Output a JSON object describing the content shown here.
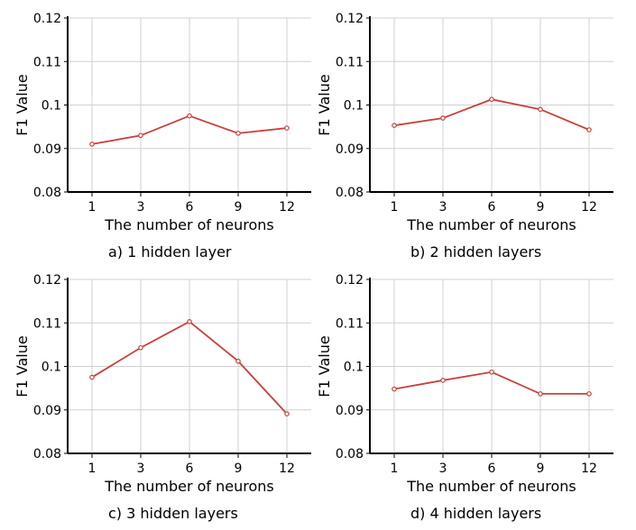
{
  "chart_data": [
    {
      "type": "line",
      "caption": "a) 1 hidden layer",
      "xlabel": "The number of neurons",
      "ylabel": "F1 Value",
      "categories": [
        "1",
        "3",
        "6",
        "9",
        "12"
      ],
      "yticks": [
        "0.08",
        "0.09",
        "0.1",
        "0.11",
        "0.12"
      ],
      "ylim": [
        0.08,
        0.12
      ],
      "grid": true,
      "series": [
        {
          "values": [
            0.091,
            0.093,
            0.0975,
            0.0935,
            0.0947
          ]
        }
      ]
    },
    {
      "type": "line",
      "caption": "b) 2 hidden layers",
      "xlabel": "The number of neurons",
      "ylabel": "F1 Value",
      "categories": [
        "1",
        "3",
        "6",
        "9",
        "12"
      ],
      "yticks": [
        "0.08",
        "0.09",
        "0.1",
        "0.11",
        "0.12"
      ],
      "ylim": [
        0.08,
        0.12
      ],
      "grid": true,
      "series": [
        {
          "values": [
            0.0953,
            0.097,
            0.1013,
            0.099,
            0.0943
          ]
        }
      ]
    },
    {
      "type": "line",
      "caption": "c) 3 hidden layers",
      "xlabel": "The number of neurons",
      "ylabel": "F1 Value",
      "categories": [
        "1",
        "3",
        "6",
        "9",
        "12"
      ],
      "yticks": [
        "0.08",
        "0.09",
        "0.1",
        "0.11",
        "0.12"
      ],
      "ylim": [
        0.08,
        0.12
      ],
      "grid": true,
      "series": [
        {
          "values": [
            0.0975,
            0.1043,
            0.1103,
            0.1012,
            0.0891
          ]
        }
      ]
    },
    {
      "type": "line",
      "caption": "d) 4 hidden layers",
      "xlabel": "The number of neurons",
      "ylabel": "F1 Value",
      "categories": [
        "1",
        "3",
        "6",
        "9",
        "12"
      ],
      "yticks": [
        "0.08",
        "0.09",
        "0.1",
        "0.11",
        "0.12"
      ],
      "ylim": [
        0.08,
        0.12
      ],
      "grid": true,
      "series": [
        {
          "values": [
            0.0948,
            0.0968,
            0.0987,
            0.0937,
            0.0937
          ]
        }
      ]
    }
  ],
  "colors": {
    "line": "#c8403a",
    "grid": "#d0d0d0",
    "axis": "#000000"
  }
}
